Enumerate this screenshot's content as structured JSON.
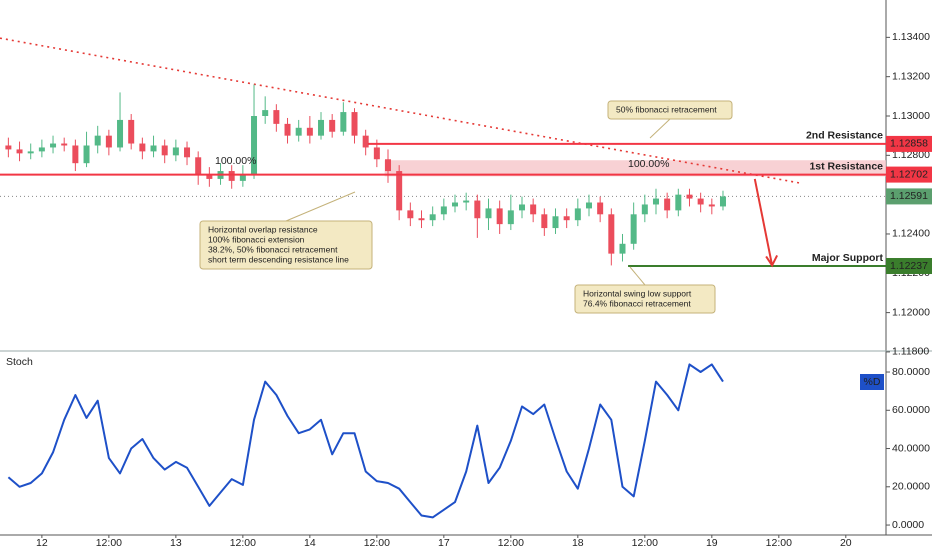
{
  "chart_data": [
    {
      "type": "candlestick",
      "x": [
        -6,
        -4,
        -2,
        0,
        2,
        4,
        6,
        8,
        10,
        12,
        14,
        16,
        18,
        20,
        22,
        24,
        26,
        28,
        30,
        32,
        34,
        36,
        38,
        40,
        42,
        44,
        46,
        48,
        50,
        52,
        54,
        56,
        58,
        60,
        62,
        64,
        66,
        68,
        70,
        72,
        74,
        76,
        78,
        80,
        82,
        84,
        86,
        88,
        90,
        92,
        94,
        96,
        98,
        100,
        102,
        104,
        106,
        108,
        110,
        112,
        114,
        116,
        118,
        120,
        122
      ],
      "open": [
        1.1285,
        1.1283,
        1.1281,
        1.1282,
        1.1284,
        1.1286,
        1.1285,
        1.1276,
        1.1285,
        1.129,
        1.1284,
        1.1298,
        1.1286,
        1.1282,
        1.1285,
        1.128,
        1.1284,
        1.1279,
        1.127,
        1.1268,
        1.1272,
        1.1267,
        1.127,
        1.13,
        1.1303,
        1.1296,
        1.129,
        1.1294,
        1.129,
        1.1298,
        1.1292,
        1.1302,
        1.129,
        1.1284,
        1.1278,
        1.1272,
        1.1252,
        1.1248,
        1.1247,
        1.125,
        1.1254,
        1.1256,
        1.1257,
        1.1248,
        1.1253,
        1.1245,
        1.1252,
        1.1255,
        1.125,
        1.1243,
        1.1249,
        1.1247,
        1.1253,
        1.1256,
        1.125,
        1.123,
        1.1235,
        1.125,
        1.1255,
        1.1258,
        1.1252,
        1.126,
        1.1258,
        1.1255,
        1.1254
      ],
      "high": [
        1.1289,
        1.1287,
        1.1286,
        1.1288,
        1.129,
        1.1289,
        1.1288,
        1.1292,
        1.1295,
        1.1293,
        1.1312,
        1.1301,
        1.1289,
        1.129,
        1.1288,
        1.1288,
        1.1287,
        1.1282,
        1.1274,
        1.1276,
        1.1275,
        1.1275,
        1.1316,
        1.131,
        1.1306,
        1.1299,
        1.1298,
        1.13,
        1.1302,
        1.1301,
        1.1307,
        1.1304,
        1.1293,
        1.1288,
        1.1283,
        1.1275,
        1.1256,
        1.1252,
        1.1254,
        1.1258,
        1.126,
        1.1261,
        1.126,
        1.1258,
        1.1257,
        1.126,
        1.1259,
        1.1258,
        1.1253,
        1.1253,
        1.1253,
        1.1258,
        1.126,
        1.1259,
        1.1253,
        1.124,
        1.1256,
        1.126,
        1.1263,
        1.1261,
        1.1263,
        1.1263,
        1.1261,
        1.1258,
        1.1262
      ],
      "low": [
        1.1279,
        1.1277,
        1.1278,
        1.1279,
        1.1281,
        1.1282,
        1.1272,
        1.1274,
        1.1281,
        1.128,
        1.1282,
        1.1283,
        1.1278,
        1.1279,
        1.1276,
        1.1277,
        1.1275,
        1.1265,
        1.1264,
        1.1265,
        1.1263,
        1.1264,
        1.1268,
        1.1296,
        1.1292,
        1.1286,
        1.1287,
        1.1286,
        1.1288,
        1.1289,
        1.129,
        1.1286,
        1.128,
        1.1274,
        1.1266,
        1.1247,
        1.1244,
        1.1243,
        1.1244,
        1.1247,
        1.1251,
        1.1252,
        1.1238,
        1.1242,
        1.124,
        1.1242,
        1.1248,
        1.1246,
        1.1239,
        1.124,
        1.1243,
        1.1244,
        1.1249,
        1.1246,
        1.1224,
        1.1226,
        1.1232,
        1.1246,
        1.125,
        1.1248,
        1.1249,
        1.1254,
        1.1251,
        1.125,
        1.1252
      ],
      "close": [
        1.1283,
        1.1281,
        1.1282,
        1.1284,
        1.1286,
        1.1285,
        1.1276,
        1.1285,
        1.129,
        1.1284,
        1.1298,
        1.1286,
        1.1282,
        1.1285,
        1.128,
        1.1284,
        1.1279,
        1.127,
        1.1268,
        1.1272,
        1.1267,
        1.127,
        1.13,
        1.1303,
        1.1296,
        1.129,
        1.1294,
        1.129,
        1.1298,
        1.1292,
        1.1302,
        1.129,
        1.1284,
        1.1278,
        1.1272,
        1.1252,
        1.1248,
        1.1247,
        1.125,
        1.1254,
        1.1256,
        1.1257,
        1.1248,
        1.1253,
        1.1245,
        1.1252,
        1.1255,
        1.125,
        1.1243,
        1.1249,
        1.1247,
        1.1253,
        1.1256,
        1.125,
        1.123,
        1.1235,
        1.125,
        1.1255,
        1.1258,
        1.1252,
        1.126,
        1.1258,
        1.1255,
        1.1254,
        1.12591
      ],
      "up_color": "#53b987",
      "down_color": "#eb4d5c",
      "xlim": [
        -7.5,
        151.2
      ],
      "ylim": [
        1.1182,
        1.1359
      ],
      "yticks": [
        {
          "value": 1.118,
          "label": "1.11800"
        },
        {
          "value": 1.12,
          "label": "1.12000"
        },
        {
          "value": 1.122,
          "label": "1.12200"
        },
        {
          "value": 1.124,
          "label": "1.12400"
        },
        {
          "value": 1.128,
          "label": "1.12800"
        },
        {
          "value": 1.13,
          "label": "1.13000"
        },
        {
          "value": 1.132,
          "label": "1.13200"
        },
        {
          "value": 1.134,
          "label": "1.13400"
        }
      ],
      "levels": [
        {
          "name": "2nd Resistance",
          "value": 1.12858,
          "label": "1.12858",
          "color": "#f23645",
          "from": 58.4
        },
        {
          "name": "1st Resistance",
          "value": 1.12702,
          "label": "1.12702",
          "color": "#f23645",
          "from": -7.5
        },
        {
          "name": "Major Support",
          "value": 1.12237,
          "label": "1.12237",
          "color": "#3a7d2c",
          "from": 105
        }
      ],
      "last_price": {
        "value": 1.12591,
        "label": "1.12591",
        "color": "#5b9f6e"
      },
      "zone": {
        "from": 61.4,
        "y": [
          1.12693,
          1.12775
        ],
        "color": "#f6c6c9"
      },
      "trendline": {
        "x": [
          -7.5,
          136
        ],
        "y": [
          1.13396,
          1.12658
        ],
        "color": "#e53935"
      },
      "arrow": {
        "x": [
          127.7,
          130.8
        ],
        "y": [
          1.1268,
          1.1224
        ],
        "color": "#e53935"
      },
      "fib_labels": [
        "100.00%",
        "100.00%"
      ],
      "annotations": [
        [
          "50% fibonacci retracement"
        ],
        [
          "Horizontal overlap resistance",
          "100% fibonacci extension",
          "38.2%, 50% fibonacci retracement",
          "short term descending resistance line"
        ],
        [
          "Horizontal swing low support",
          "76.4% fibonacci retracement"
        ]
      ]
    },
    {
      "type": "line",
      "title": "Stoch",
      "x": [
        -6,
        -4,
        -2,
        0,
        2,
        4,
        6,
        8,
        10,
        12,
        14,
        16,
        18,
        20,
        22,
        24,
        26,
        28,
        30,
        32,
        34,
        36,
        38,
        40,
        42,
        44,
        46,
        48,
        50,
        52,
        54,
        56,
        58,
        60,
        62,
        64,
        66,
        68,
        70,
        72,
        74,
        76,
        78,
        80,
        82,
        84,
        86,
        88,
        90,
        92,
        94,
        96,
        98,
        100,
        102,
        104,
        106,
        108,
        110,
        112,
        114,
        116,
        118,
        120,
        122
      ],
      "series": [
        {
          "name": "%D",
          "color": "#1e50c8",
          "values": [
            25,
            20,
            22,
            27,
            38,
            55,
            68,
            56,
            65,
            35,
            27,
            40,
            45,
            35,
            29,
            33,
            30,
            20,
            10,
            17,
            24,
            21,
            55,
            75,
            68,
            57,
            48,
            50,
            55,
            37,
            48,
            48,
            28,
            23,
            22,
            19,
            12,
            5,
            4,
            8,
            12,
            28,
            52,
            22,
            30,
            44,
            62,
            58,
            63,
            45,
            28,
            19,
            40,
            63,
            55,
            20,
            15,
            44,
            75,
            68,
            60,
            84,
            80,
            84,
            75
          ]
        }
      ],
      "xlim": [
        -7.5,
        151.2
      ],
      "xticks": [
        {
          "value": 0,
          "label": "12"
        },
        {
          "value": 12,
          "label": "12:00"
        },
        {
          "value": 24,
          "label": "13"
        },
        {
          "value": 36,
          "label": "12:00"
        },
        {
          "value": 48,
          "label": "14"
        },
        {
          "value": 60,
          "label": "12:00"
        },
        {
          "value": 72,
          "label": "17"
        },
        {
          "value": 84,
          "label": "12:00"
        },
        {
          "value": 96,
          "label": "18"
        },
        {
          "value": 108,
          "label": "12:00"
        },
        {
          "value": 120,
          "label": "19"
        },
        {
          "value": 132,
          "label": "12:00"
        },
        {
          "value": 144,
          "label": "20"
        }
      ],
      "ylim": [
        -5.2,
        88.9
      ],
      "yticks": [
        {
          "value": 0,
          "label": "0.0000"
        },
        {
          "value": 20,
          "label": "20.0000"
        },
        {
          "value": 40,
          "label": "40.0000"
        },
        {
          "value": 60,
          "label": "60.0000"
        },
        {
          "value": 80,
          "label": "80.0000"
        }
      ]
    }
  ]
}
